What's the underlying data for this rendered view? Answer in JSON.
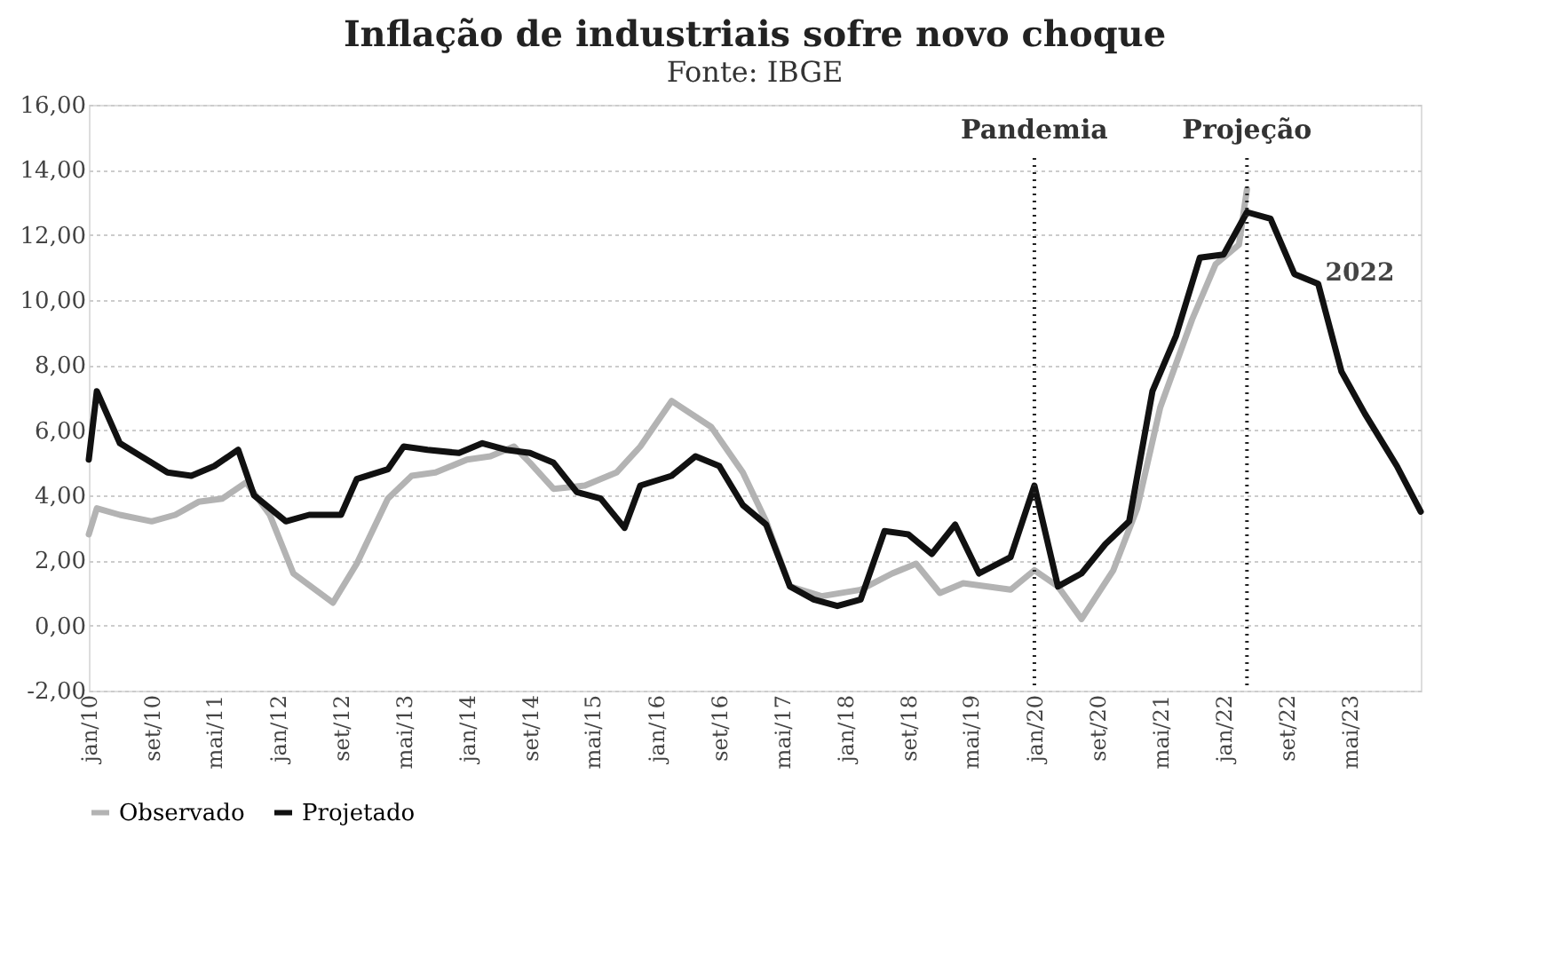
{
  "chart_data": {
    "type": "line",
    "title": "Inflação de industriais sofre novo choque",
    "subtitle": "Fonte: IBGE",
    "xlim": [
      "2010-01",
      "2024-02"
    ],
    "xticks": [
      {
        "value": "2010-01",
        "label": "jan/10"
      },
      {
        "value": "2010-09",
        "label": "set/10"
      },
      {
        "value": "2011-05",
        "label": "mai/11"
      },
      {
        "value": "2012-01",
        "label": "jan/12"
      },
      {
        "value": "2012-09",
        "label": "set/12"
      },
      {
        "value": "2013-05",
        "label": "mai/13"
      },
      {
        "value": "2014-01",
        "label": "jan/14"
      },
      {
        "value": "2014-09",
        "label": "set/14"
      },
      {
        "value": "2015-05",
        "label": "mai/15"
      },
      {
        "value": "2016-01",
        "label": "jan/16"
      },
      {
        "value": "2016-09",
        "label": "set/16"
      },
      {
        "value": "2017-05",
        "label": "mai/17"
      },
      {
        "value": "2018-01",
        "label": "jan/18"
      },
      {
        "value": "2018-09",
        "label": "set/18"
      },
      {
        "value": "2019-05",
        "label": "mai/19"
      },
      {
        "value": "2020-01",
        "label": "jan/20"
      },
      {
        "value": "2020-09",
        "label": "set/20"
      },
      {
        "value": "2021-05",
        "label": "mai/21"
      },
      {
        "value": "2022-01",
        "label": "jan/22"
      },
      {
        "value": "2022-09",
        "label": "set/22"
      },
      {
        "value": "2023-05",
        "label": "mai/23"
      }
    ],
    "ylim": [
      -2,
      16
    ],
    "yticks": [
      {
        "value": -2,
        "label": "-2,00"
      },
      {
        "value": 0,
        "label": "0,00"
      },
      {
        "value": 2,
        "label": "2,00"
      },
      {
        "value": 4,
        "label": "4,00"
      },
      {
        "value": 6,
        "label": "6,00"
      },
      {
        "value": 8,
        "label": "8,00"
      },
      {
        "value": 10,
        "label": "10,00"
      },
      {
        "value": 12,
        "label": "12,00"
      },
      {
        "value": 14,
        "label": "14,00"
      },
      {
        "value": 16,
        "label": "16,00"
      }
    ],
    "grid": "y",
    "legend": "bottom",
    "marker": "none",
    "line_style": "solid",
    "series": [
      {
        "name": "Observado",
        "color": "#b3b3b3",
        "x": [
          "2010-01",
          "2010-02",
          "2010-05",
          "2010-09",
          "2010-12",
          "2011-03",
          "2011-06",
          "2011-09",
          "2011-12",
          "2012-03",
          "2012-08",
          "2012-11",
          "2013-03",
          "2013-06",
          "2013-09",
          "2014-01",
          "2014-04",
          "2014-07",
          "2014-09",
          "2014-12",
          "2015-04",
          "2015-08",
          "2015-11",
          "2016-03",
          "2016-08",
          "2016-12",
          "2017-03",
          "2017-06",
          "2017-10",
          "2018-03",
          "2018-07",
          "2018-10",
          "2019-01",
          "2019-04",
          "2019-10",
          "2020-01",
          "2020-04",
          "2020-07",
          "2020-11",
          "2021-02",
          "2021-05",
          "2021-09",
          "2021-12",
          "2022-03",
          "2022-04"
        ],
        "values": [
          2.8,
          3.6,
          3.4,
          3.2,
          3.4,
          3.8,
          3.9,
          4.4,
          3.4,
          1.6,
          0.7,
          1.9,
          3.9,
          4.6,
          4.7,
          5.1,
          5.2,
          5.5,
          5.0,
          4.2,
          4.3,
          4.7,
          5.5,
          6.9,
          6.1,
          4.7,
          3.2,
          1.2,
          0.9,
          1.1,
          1.6,
          1.9,
          1.0,
          1.3,
          1.1,
          1.7,
          1.2,
          0.2,
          1.7,
          3.6,
          6.7,
          9.4,
          11.1,
          11.7,
          13.4
        ]
      },
      {
        "name": "Projetado",
        "color": "#111111",
        "x": [
          "2010-01",
          "2010-02",
          "2010-05",
          "2010-09",
          "2010-11",
          "2011-02",
          "2011-05",
          "2011-08",
          "2011-10",
          "2012-02",
          "2012-05",
          "2012-09",
          "2012-11",
          "2013-03",
          "2013-05",
          "2013-08",
          "2013-12",
          "2014-03",
          "2014-06",
          "2014-09",
          "2014-12",
          "2015-03",
          "2015-06",
          "2015-09",
          "2015-11",
          "2016-03",
          "2016-06",
          "2016-09",
          "2016-12",
          "2017-03",
          "2017-06",
          "2017-09",
          "2017-12",
          "2018-03",
          "2018-06",
          "2018-09",
          "2018-12",
          "2019-03",
          "2019-06",
          "2019-10",
          "2020-01",
          "2020-04",
          "2020-07",
          "2020-10",
          "2021-01",
          "2021-04",
          "2021-07",
          "2021-10",
          "2022-01",
          "2022-04",
          "2022-07",
          "2022-10",
          "2023-01",
          "2023-04",
          "2023-07",
          "2023-11",
          "2024-02"
        ],
        "values": [
          5.1,
          7.2,
          5.6,
          5.0,
          4.7,
          4.6,
          4.9,
          5.4,
          4.0,
          3.2,
          3.4,
          3.4,
          4.5,
          4.8,
          5.5,
          5.4,
          5.3,
          5.6,
          5.4,
          5.3,
          5.0,
          4.1,
          3.9,
          3.0,
          4.3,
          4.6,
          5.2,
          4.9,
          3.7,
          3.1,
          1.2,
          0.8,
          0.6,
          0.8,
          2.9,
          2.8,
          2.2,
          3.1,
          1.6,
          2.1,
          4.3,
          1.2,
          1.6,
          2.5,
          3.2,
          7.2,
          8.9,
          11.3,
          11.4,
          12.7,
          12.5,
          10.8,
          10.5,
          7.8,
          6.5,
          4.9,
          3.5
        ]
      }
    ],
    "ref_lines": [
      {
        "axis": "x",
        "value": "2020-01",
        "label": "Pandemia",
        "line_style": "dotted",
        "color": "#222222"
      },
      {
        "axis": "x",
        "value": "2022-04",
        "label": "Projeção",
        "line_style": "dotted",
        "color": "#222222"
      }
    ],
    "annotations": [
      {
        "text": "2022",
        "x": "2023-01",
        "y": 10.5
      }
    ]
  }
}
